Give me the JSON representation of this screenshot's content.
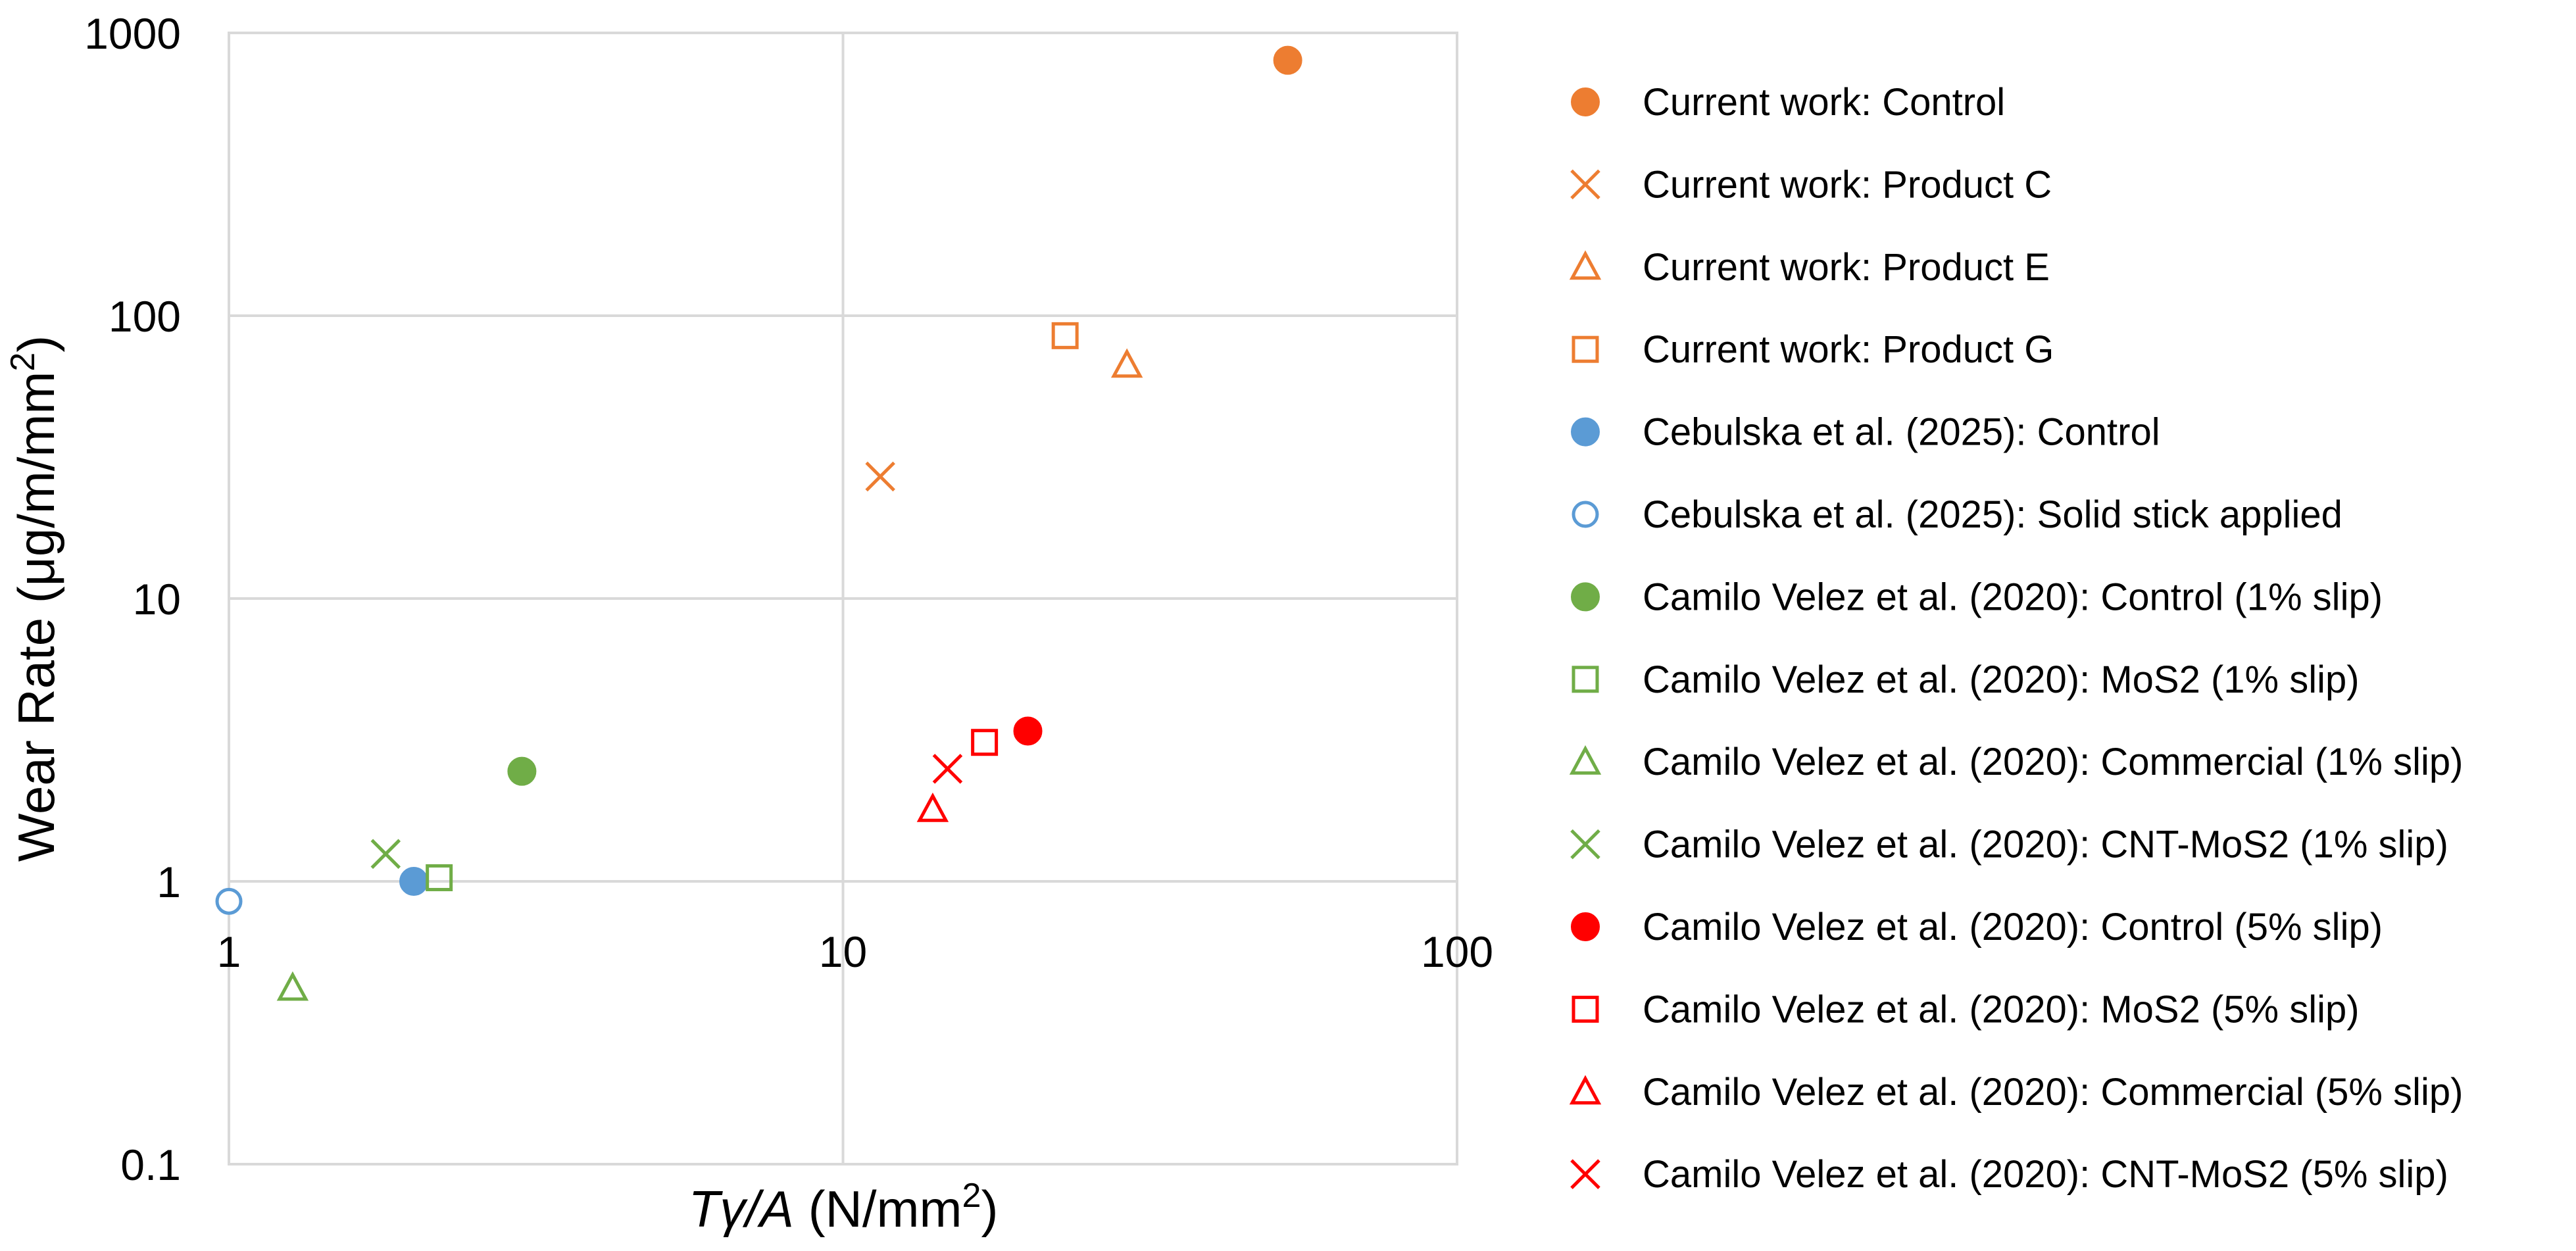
{
  "chart_data": {
    "type": "scatter",
    "xscale": "log",
    "yscale": "log",
    "xlim": [
      1,
      100
    ],
    "ylim": [
      0.1,
      1000
    ],
    "grid": true,
    "legend_position": "right",
    "xlabel": {
      "italic": "Tγ/A",
      "rest": " (N/mm",
      "sup": "2",
      "end": ")"
    },
    "ylabel": {
      "main": "Wear Rate  (μg/m/mm",
      "sup": "2",
      "end": ")"
    },
    "xticks": [
      1,
      10,
      100
    ],
    "xtick_labels": [
      "1",
      "10",
      "100"
    ],
    "yticks": [
      0.1,
      1,
      10,
      100,
      1000
    ],
    "ytick_labels": [
      "0.1",
      "1",
      "10",
      "100",
      "1000"
    ],
    "series": [
      {
        "name": "Current work: Control",
        "marker": "circle-filled",
        "color": "#ED7D31",
        "points": [
          [
            53,
            800
          ]
        ]
      },
      {
        "name": "Current work: Product C",
        "marker": "x",
        "color": "#ED7D31",
        "points": [
          [
            11.5,
            27
          ]
        ]
      },
      {
        "name": "Current work: Product E",
        "marker": "triangle-open",
        "color": "#ED7D31",
        "points": [
          [
            29,
            67
          ]
        ]
      },
      {
        "name": "Current work: Product G",
        "marker": "square-open",
        "color": "#ED7D31",
        "points": [
          [
            23,
            85
          ]
        ]
      },
      {
        "name": "Cebulska et al. (2025): Control",
        "marker": "circle-filled",
        "color": "#5B9BD5",
        "points": [
          [
            2.0,
            1.0
          ]
        ]
      },
      {
        "name": "Cebulska et al. (2025): Solid stick applied",
        "marker": "circle-open",
        "color": "#5B9BD5",
        "points": [
          [
            1.0,
            0.85
          ]
        ]
      },
      {
        "name": "Camilo Velez et al. (2020): Control (1% slip)",
        "marker": "circle-filled",
        "color": "#70AD47",
        "points": [
          [
            3.0,
            2.45
          ]
        ]
      },
      {
        "name": "Camilo Velez et al. (2020): MoS2 (1% slip)",
        "marker": "square-open",
        "color": "#70AD47",
        "points": [
          [
            2.2,
            1.03
          ]
        ]
      },
      {
        "name": "Camilo Velez et al. (2020): Commercial (1% slip)",
        "marker": "triangle-open",
        "color": "#70AD47",
        "points": [
          [
            1.27,
            0.42
          ]
        ]
      },
      {
        "name": "Camilo Velez et al. (2020): CNT-MoS2 (1% slip)",
        "marker": "x",
        "color": "#70AD47",
        "points": [
          [
            1.8,
            1.25
          ]
        ]
      },
      {
        "name": "Camilo Velez et al. (2020): Control (5% slip)",
        "marker": "circle-filled",
        "color": "#FF0000",
        "points": [
          [
            20,
            3.4
          ]
        ]
      },
      {
        "name": "Camilo Velez et al. (2020): MoS2 (5% slip)",
        "marker": "square-open",
        "color": "#FF0000",
        "points": [
          [
            17,
            3.1
          ]
        ]
      },
      {
        "name": "Camilo Velez et al. (2020): Commercial (5% slip)",
        "marker": "triangle-open",
        "color": "#FF0000",
        "points": [
          [
            14,
            1.8
          ]
        ]
      },
      {
        "name": "Camilo Velez et al. (2020): CNT-MoS2 (5% slip)",
        "marker": "x",
        "color": "#FF0000",
        "points": [
          [
            14.8,
            2.5
          ]
        ]
      }
    ]
  }
}
